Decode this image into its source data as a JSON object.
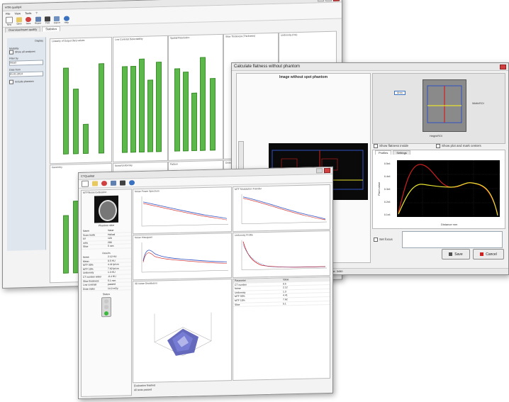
{
  "back_window": {
    "title": "HTR qualityX",
    "menu": [
      "File",
      "View",
      "Tools",
      "?"
    ],
    "toolbar": [
      "New",
      "Open",
      "Save",
      "Report",
      "Print",
      "Export",
      "Help"
    ],
    "tabs": [
      "Overview/insert quality",
      "Statistics"
    ],
    "sidebar": {
      "header": "Display",
      "group_label": "Modality",
      "check_label": "Show all analyses",
      "field1_label": "Filter by",
      "field1_value": "Head",
      "field2_label": "Date from",
      "field2_value": "01.01.2014",
      "check2_label": "Include phantom"
    },
    "panels": [
      {
        "title": "Linearity of Output (fan) values"
      },
      {
        "title": "Low Contrast Detectability"
      },
      {
        "title": "Spatial Resolution"
      },
      {
        "title": "Slice Thickness (Thickness)"
      },
      {
        "title": "Uniformity (HU)"
      },
      {
        "title": "Geometry"
      },
      {
        "title": "Noise/Uniformity"
      },
      {
        "title": "Pattern"
      },
      {
        "title": "Dose Index"
      }
    ]
  },
  "middle_window": {
    "title": "Calculate flatness without phantom",
    "image_label": "Image without spot phantom",
    "area_label": "Area",
    "width_label": "Width/ROI",
    "height_label": "Height/ROI",
    "check1_label": "Show flatness inside",
    "check2_label": "Show plot and mark centers",
    "chart_tabs": [
      "Profiles",
      "Settings"
    ],
    "ylabel": "Pixel value",
    "xlabel": "Distance mm",
    "y_ticks": [
      "6.5e4",
      "6.4e4",
      "6.3e4",
      "6.2e4",
      "6.1e4"
    ],
    "edit_label": "Set focus",
    "save_label": "Save",
    "cancel_label": "Cancel",
    "status_text": "Pixel value: 3450"
  },
  "front_window": {
    "title": "CTQualitat",
    "tree_title": "MTF/Noise Evaluation",
    "image_caption": "Phantom slice",
    "info_rows": [
      [
        "Name",
        "Value"
      ],
      [
        "Scan mode",
        "Helical"
      ],
      [
        "kV",
        "120"
      ],
      [
        "mAs",
        "200"
      ],
      [
        "Slice",
        "5 mm"
      ]
    ],
    "results_header": "Results",
    "result_rows": [
      [
        "Noise",
        "2.12 HU"
      ],
      [
        "Mean",
        "0.5 HU"
      ],
      [
        "MTF 50%",
        "4.41 lp/cm"
      ],
      [
        "MTF 10%",
        "7.62 lp/cm"
      ],
      [
        "Uniformity",
        "1.3 HU"
      ],
      [
        "CT number water",
        "-0.4 HU"
      ],
      [
        "Slice thickness",
        "5.1 mm"
      ],
      [
        "Low contrast",
        "passed"
      ],
      [
        "Dose index",
        "14.2 mGy"
      ]
    ],
    "traffic_label": "Status",
    "plots": [
      {
        "title": "Noise Power Spectrum"
      },
      {
        "title": "MTF Modulation Transfer"
      },
      {
        "title": "Noise Histogram"
      },
      {
        "title": "Uniformity Profile"
      }
    ],
    "plot3d_title": "3D Noise Distribution",
    "table_rows": [
      [
        "Parameter",
        "Value"
      ],
      [
        "CT number",
        "0.5"
      ],
      [
        "Noise",
        "2.12"
      ],
      [
        "Uniformity",
        "1.3"
      ],
      [
        "MTF 50%",
        "4.41"
      ],
      [
        "MTF 10%",
        "7.62"
      ],
      [
        "Slice",
        "5.1"
      ]
    ],
    "bottom_text": "Evaluation finished",
    "bottom_text2": "All tests passed"
  },
  "colors": {
    "bar_green": "#5cb84a",
    "bar_red": "#e03030",
    "curve_red": "#d02020",
    "curve_yellow": "#e8e230",
    "curve_blue": "#3050c0",
    "accent_blue": "#3a70c0"
  }
}
